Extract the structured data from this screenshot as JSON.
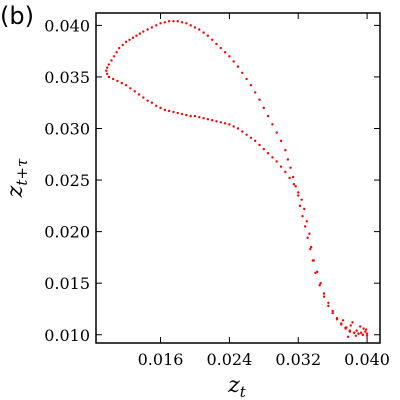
{
  "panel_label": "(b)",
  "chart_data": {
    "type": "scatter",
    "marker_color": "#ff0000",
    "xlabel": "z_t",
    "ylabel": "z_{t+τ}",
    "xlim": [
      0.0085,
      0.0415
    ],
    "ylim": [
      0.0092,
      0.0412
    ],
    "xticks": [
      0.016,
      0.024,
      0.032,
      0.04
    ],
    "xtick_labels": [
      "0.016",
      "0.024",
      "0.032",
      "0.040"
    ],
    "yticks": [
      0.01,
      0.015,
      0.02,
      0.025,
      0.03,
      0.035,
      0.04
    ],
    "ytick_labels": [
      "0.010",
      "0.015",
      "0.020",
      "0.025",
      "0.030",
      "0.035",
      "0.040"
    ],
    "grid": false,
    "legend": "none",
    "series": [
      {
        "name": "",
        "x": [
          0.0385,
          0.039,
          0.0395,
          0.04,
          0.038,
          0.0375,
          0.037,
          0.0365,
          0.036,
          0.0355,
          0.035,
          0.0345,
          0.034,
          0.0337,
          0.0335,
          0.0333,
          0.033,
          0.0327,
          0.0324,
          0.032,
          0.0315,
          0.031,
          0.0305,
          0.03,
          0.0295,
          0.029,
          0.0285,
          0.028,
          0.0275,
          0.027,
          0.0265,
          0.026,
          0.0255,
          0.025,
          0.0245,
          0.024,
          0.0235,
          0.023,
          0.0225,
          0.022,
          0.0215,
          0.021,
          0.0205,
          0.02,
          0.0195,
          0.019,
          0.0185,
          0.018,
          0.0175,
          0.017,
          0.0165,
          0.016,
          0.0155,
          0.015,
          0.0145,
          0.014,
          0.0135,
          0.013,
          0.0125,
          0.012,
          0.0115,
          0.011,
          0.0105,
          0.01,
          0.0098,
          0.0097,
          0.0098,
          0.01,
          0.0103,
          0.0106,
          0.0109,
          0.0112,
          0.0116,
          0.012,
          0.0124,
          0.0128,
          0.0132,
          0.0136,
          0.014,
          0.0145,
          0.015,
          0.0155,
          0.016,
          0.0165,
          0.017,
          0.0175,
          0.018,
          0.0185,
          0.019,
          0.0195,
          0.02,
          0.0205,
          0.021,
          0.0215,
          0.022,
          0.0225,
          0.023,
          0.0235,
          0.024,
          0.0245,
          0.025,
          0.0255,
          0.026,
          0.0265,
          0.027,
          0.0275,
          0.028,
          0.0285,
          0.029,
          0.0295,
          0.03,
          0.0305,
          0.0308,
          0.0311,
          0.0314,
          0.0317,
          0.032,
          0.0322,
          0.0325,
          0.0328,
          0.0331,
          0.0334,
          0.0338,
          0.0342,
          0.0346,
          0.035,
          0.0355,
          0.036,
          0.0365,
          0.037,
          0.0375,
          0.038,
          0.0385,
          0.039,
          0.0395,
          0.04,
          0.0388,
          0.0392,
          0.0378,
          0.0396,
          0.0383,
          0.0398,
          0.0372,
          0.0387,
          0.0393,
          0.0381,
          0.0376,
          0.0399
        ],
        "y": [
          0.0102,
          0.0101,
          0.01,
          0.0101,
          0.0103,
          0.0106,
          0.011,
          0.0115,
          0.0121,
          0.0128,
          0.0137,
          0.0148,
          0.016,
          0.0172,
          0.0185,
          0.0198,
          0.021,
          0.0222,
          0.0231,
          0.0238,
          0.0246,
          0.0252,
          0.0258,
          0.0263,
          0.0268,
          0.0272,
          0.0276,
          0.028,
          0.0284,
          0.0288,
          0.0291,
          0.0294,
          0.0297,
          0.03,
          0.0302,
          0.0304,
          0.0305,
          0.0306,
          0.0307,
          0.0308,
          0.0309,
          0.031,
          0.0311,
          0.0312,
          0.0312,
          0.0313,
          0.0314,
          0.0315,
          0.0316,
          0.0317,
          0.0318,
          0.032,
          0.0322,
          0.0325,
          0.0327,
          0.033,
          0.0333,
          0.0336,
          0.0339,
          0.0342,
          0.0344,
          0.0346,
          0.0348,
          0.035,
          0.0353,
          0.0356,
          0.0359,
          0.0362,
          0.0366,
          0.037,
          0.0374,
          0.0378,
          0.0381,
          0.0384,
          0.0386,
          0.0388,
          0.039,
          0.0392,
          0.0394,
          0.0396,
          0.0398,
          0.04,
          0.0402,
          0.0403,
          0.0404,
          0.0404,
          0.0404,
          0.0403,
          0.0402,
          0.04,
          0.0398,
          0.0396,
          0.0393,
          0.039,
          0.0386,
          0.0382,
          0.0378,
          0.0374,
          0.037,
          0.0365,
          0.036,
          0.0354,
          0.0348,
          0.0342,
          0.0335,
          0.0328,
          0.032,
          0.0312,
          0.0304,
          0.0296,
          0.0288,
          0.0279,
          0.027,
          0.0262,
          0.0253,
          0.0244,
          0.0235,
          0.0225,
          0.0215,
          0.0205,
          0.0194,
          0.0183,
          0.0172,
          0.0161,
          0.015,
          0.014,
          0.0131,
          0.0123,
          0.0116,
          0.0111,
          0.0107,
          0.0104,
          0.0102,
          0.0101,
          0.01,
          0.0099,
          0.0104,
          0.0108,
          0.0098,
          0.0106,
          0.0112,
          0.0103,
          0.0114,
          0.0099,
          0.0102,
          0.0109,
          0.0107,
          0.0105
        ]
      }
    ]
  }
}
